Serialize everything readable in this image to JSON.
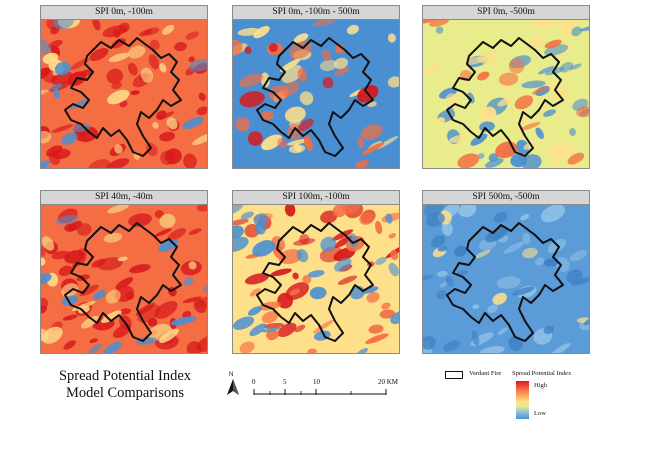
{
  "panels": [
    {
      "title": "SPI 0m, -100m",
      "scheme": "hot"
    },
    {
      "title": "SPI 0m, -100m - 500m",
      "scheme": "cool"
    },
    {
      "title": "SPI 0m, -500m",
      "scheme": "mid"
    },
    {
      "title": "SPI 40m, -40m",
      "scheme": "hot"
    },
    {
      "title": "SPI 100m, -100m",
      "scheme": "warm"
    },
    {
      "title": "SPI 500m, -500m",
      "scheme": "cold"
    }
  ],
  "caption": {
    "line1": "Spread Potential Index",
    "line2": "Model Comparisons"
  },
  "north_arrow": {
    "letter": "N"
  },
  "scale_bar": {
    "ticks": [
      "0",
      "5",
      "10",
      "20 KM"
    ]
  },
  "legend": {
    "fire_label": "Verdant Fire",
    "spi_title": "Spread Potential Index",
    "high_label": "High",
    "low_label": "Low"
  },
  "colors": {
    "high": "#d7191c",
    "orange": "#f46d43",
    "yellow": "#fee08b",
    "low": "#4a8fd1",
    "perimeter": "#111111"
  }
}
